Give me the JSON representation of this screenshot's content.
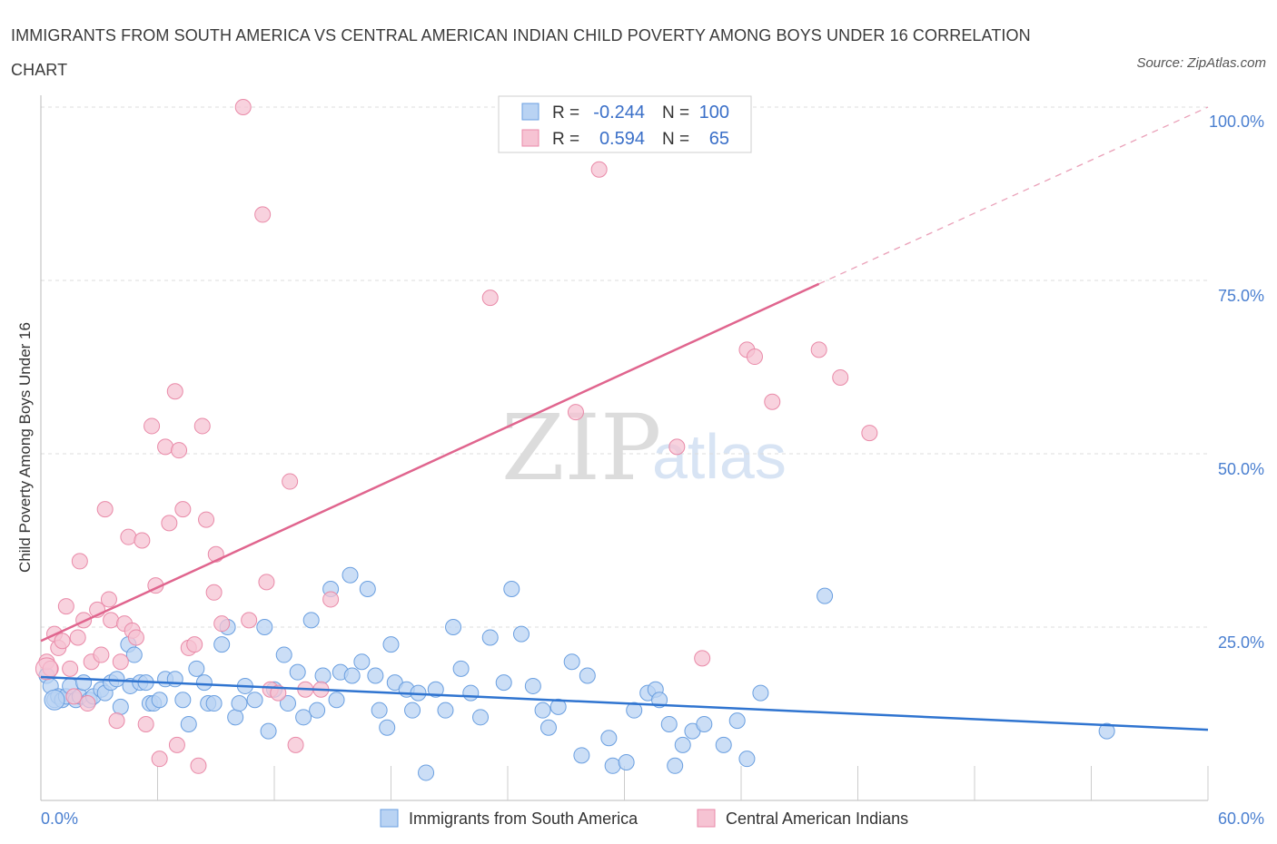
{
  "title": "IMMIGRANTS FROM SOUTH AMERICA VS CENTRAL AMERICAN INDIAN CHILD POVERTY AMONG BOYS UNDER 16 CORRELATION CHART",
  "source": "Source: ZipAtlas.com",
  "watermark": {
    "zip": "ZIP",
    "atlas": "atlas"
  },
  "legend_box": {
    "rows": [
      {
        "r_label": "R =",
        "r_value": "-0.244",
        "n_label": "N =",
        "n_value": "100"
      },
      {
        "r_label": "R =",
        "r_value": "0.594",
        "n_label": "N =",
        "n_value": "65"
      }
    ]
  },
  "chart_data": {
    "type": "scatter",
    "title": "IMMIGRANTS FROM SOUTH AMERICA VS CENTRAL AMERICAN INDIAN CHILD POVERTY AMONG BOYS UNDER 16 CORRELATION CHART",
    "xlabel": "",
    "ylabel": "Child Poverty Among Boys Under 16",
    "xlim": [
      0,
      60
    ],
    "ylim": [
      0,
      100
    ],
    "x_tick_labels": [
      "0.0%",
      "60.0%"
    ],
    "y_tick_labels": [
      "25.0%",
      "50.0%",
      "75.0%",
      "100.0%"
    ],
    "y_ticks": [
      25,
      50,
      75,
      100
    ],
    "grid": true,
    "series": [
      {
        "name": "Immigrants from South America",
        "color": "#6a9fe0",
        "fill": "#b9d3f3",
        "r": -0.244,
        "n": 100,
        "trend": {
          "x0": 0,
          "y0": 17.8,
          "x1": 60,
          "y1": 10.2
        },
        "points": [
          [
            0.3,
            18
          ],
          [
            0.5,
            16.5
          ],
          [
            0.7,
            14.5
          ],
          [
            0.9,
            15
          ],
          [
            1.1,
            14.5
          ],
          [
            1.3,
            15
          ],
          [
            1.5,
            16.5
          ],
          [
            1.8,
            14.5
          ],
          [
            2,
            15
          ],
          [
            2.2,
            17
          ],
          [
            2.5,
            14.5
          ],
          [
            2.7,
            15
          ],
          [
            3.1,
            16
          ],
          [
            3.3,
            15.5
          ],
          [
            3.6,
            17
          ],
          [
            3.9,
            17.5
          ],
          [
            4.1,
            13.5
          ],
          [
            4.5,
            22.5
          ],
          [
            4.6,
            16.5
          ],
          [
            4.8,
            21
          ],
          [
            5.1,
            17
          ],
          [
            5.4,
            17
          ],
          [
            5.6,
            14
          ],
          [
            5.8,
            14
          ],
          [
            6.1,
            14.5
          ],
          [
            6.4,
            17.5
          ],
          [
            6.9,
            17.5
          ],
          [
            7.3,
            14.5
          ],
          [
            7.6,
            11
          ],
          [
            8.0,
            19
          ],
          [
            8.4,
            17
          ],
          [
            8.6,
            14
          ],
          [
            8.9,
            14
          ],
          [
            9.3,
            22.5
          ],
          [
            9.6,
            25
          ],
          [
            10,
            12
          ],
          [
            10.2,
            14
          ],
          [
            10.5,
            16.5
          ],
          [
            11.0,
            14.5
          ],
          [
            11.5,
            25
          ],
          [
            11.7,
            10
          ],
          [
            12.0,
            16
          ],
          [
            12.5,
            21
          ],
          [
            12.7,
            14
          ],
          [
            13.2,
            18.5
          ],
          [
            13.5,
            12
          ],
          [
            13.9,
            26
          ],
          [
            14.2,
            13
          ],
          [
            14.5,
            18
          ],
          [
            14.9,
            30.5
          ],
          [
            15.2,
            14.5
          ],
          [
            15.4,
            18.5
          ],
          [
            15.9,
            32.5
          ],
          [
            16.0,
            18
          ],
          [
            16.5,
            20
          ],
          [
            16.8,
            30.5
          ],
          [
            17.2,
            18
          ],
          [
            17.4,
            13
          ],
          [
            17.8,
            10.5
          ],
          [
            18.0,
            22.5
          ],
          [
            18.2,
            17
          ],
          [
            18.8,
            16
          ],
          [
            19.1,
            13
          ],
          [
            19.4,
            15.5
          ],
          [
            19.8,
            4
          ],
          [
            20.3,
            16
          ],
          [
            20.8,
            13
          ],
          [
            21.2,
            25
          ],
          [
            21.6,
            19
          ],
          [
            22.1,
            15.5
          ],
          [
            22.6,
            12
          ],
          [
            23.1,
            23.5
          ],
          [
            23.8,
            17
          ],
          [
            24.2,
            30.5
          ],
          [
            24.7,
            24
          ],
          [
            25.3,
            16.5
          ],
          [
            25.8,
            13
          ],
          [
            26.1,
            10.5
          ],
          [
            26.6,
            13.5
          ],
          [
            27.3,
            20
          ],
          [
            27.8,
            6.5
          ],
          [
            28.1,
            18
          ],
          [
            29.2,
            9
          ],
          [
            29.4,
            5
          ],
          [
            30.1,
            5.5
          ],
          [
            30.5,
            13
          ],
          [
            31.2,
            15.5
          ],
          [
            31.6,
            16
          ],
          [
            31.8,
            14.5
          ],
          [
            32.3,
            11
          ],
          [
            32.6,
            5
          ],
          [
            33.0,
            8
          ],
          [
            33.5,
            10
          ],
          [
            34.1,
            11
          ],
          [
            35.1,
            8
          ],
          [
            35.8,
            11.5
          ],
          [
            36.3,
            6
          ],
          [
            37.0,
            15.5
          ],
          [
            40.3,
            29.5
          ],
          [
            54.8,
            10
          ]
        ]
      },
      {
        "name": "Central American Indians",
        "color": "#e98aa8",
        "fill": "#f6c3d3",
        "r": 0.594,
        "n": 65,
        "trend": {
          "x0": 0,
          "y0": 23,
          "x1": 40,
          "y1": 74.5,
          "extend_x1": 60,
          "extend_y1": 100
        },
        "points": [
          [
            0.3,
            20
          ],
          [
            0.5,
            19
          ],
          [
            0.7,
            24
          ],
          [
            0.9,
            22
          ],
          [
            1.1,
            23
          ],
          [
            1.3,
            28
          ],
          [
            1.5,
            19
          ],
          [
            1.7,
            15
          ],
          [
            1.9,
            23.5
          ],
          [
            2.0,
            34.5
          ],
          [
            2.2,
            26
          ],
          [
            2.4,
            14
          ],
          [
            2.6,
            20
          ],
          [
            2.9,
            27.5
          ],
          [
            3.1,
            21
          ],
          [
            3.3,
            42
          ],
          [
            3.5,
            29
          ],
          [
            3.6,
            26
          ],
          [
            3.9,
            11.5
          ],
          [
            4.1,
            20
          ],
          [
            4.3,
            25.5
          ],
          [
            4.5,
            38
          ],
          [
            4.7,
            24.5
          ],
          [
            4.9,
            23.5
          ],
          [
            5.2,
            37.5
          ],
          [
            5.4,
            11
          ],
          [
            5.7,
            54
          ],
          [
            5.9,
            31
          ],
          [
            6.1,
            6
          ],
          [
            6.4,
            51
          ],
          [
            6.6,
            40
          ],
          [
            6.9,
            59
          ],
          [
            7.0,
            8
          ],
          [
            7.1,
            50.5
          ],
          [
            7.3,
            42
          ],
          [
            7.6,
            22
          ],
          [
            7.9,
            22.5
          ],
          [
            8.1,
            5
          ],
          [
            8.3,
            54
          ],
          [
            8.5,
            40.5
          ],
          [
            8.9,
            30
          ],
          [
            9.0,
            35.5
          ],
          [
            9.3,
            25.5
          ],
          [
            10.4,
            100
          ],
          [
            10.7,
            26
          ],
          [
            11.4,
            84.5
          ],
          [
            11.6,
            31.5
          ],
          [
            11.8,
            16
          ],
          [
            12.2,
            15.5
          ],
          [
            12.8,
            46
          ],
          [
            13.1,
            8
          ],
          [
            13.6,
            16
          ],
          [
            14.4,
            16
          ],
          [
            14.9,
            29
          ],
          [
            23.1,
            72.5
          ],
          [
            27.5,
            56
          ],
          [
            28.7,
            91
          ],
          [
            32.7,
            51
          ],
          [
            34.0,
            20.5
          ],
          [
            36.3,
            65
          ],
          [
            36.7,
            64
          ],
          [
            37.6,
            57.5
          ],
          [
            40.0,
            65
          ],
          [
            41.1,
            61
          ],
          [
            42.6,
            53
          ]
        ]
      }
    ]
  },
  "bottom_legend": [
    {
      "label": "Immigrants from South America"
    },
    {
      "label": "Central American Indians"
    }
  ]
}
